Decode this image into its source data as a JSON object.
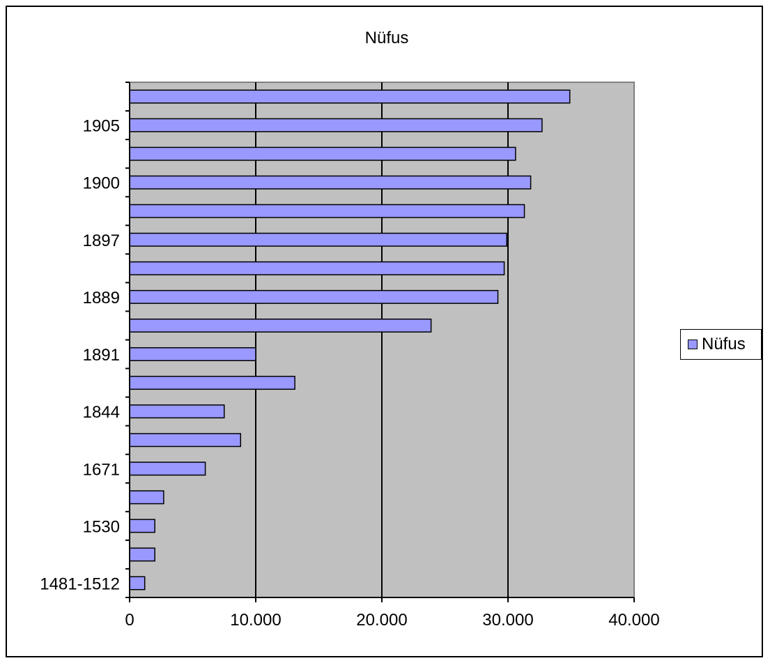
{
  "chart_data": {
    "type": "bar",
    "orientation": "horizontal",
    "title": "Nüfus",
    "xlabel": "",
    "ylabel": "",
    "categories": [
      "1481-1512",
      "",
      "1530",
      "",
      "1671",
      "",
      "1844",
      "",
      "1891",
      "",
      "1889",
      "",
      "1897",
      "",
      "1900",
      "",
      "1905",
      ""
    ],
    "series": [
      {
        "name": "Nüfus",
        "values": [
          1200,
          2000,
          2000,
          2700,
          6000,
          8800,
          7500,
          13100,
          10000,
          23900,
          29200,
          29700,
          29900,
          31300,
          31800,
          30600,
          32700,
          34900
        ]
      }
    ],
    "xlim": [
      0,
      40000
    ],
    "x_ticks": [
      0,
      10000,
      20000,
      30000,
      40000
    ],
    "x_tick_labels": [
      "0",
      "10.000",
      "20.000",
      "30.000",
      "40.000"
    ],
    "grid": "vertical",
    "legend_position": "right",
    "colors": {
      "bar_fill": "#9999ff",
      "plot_background": "#c0c0c0",
      "gridline": "#000000"
    }
  }
}
